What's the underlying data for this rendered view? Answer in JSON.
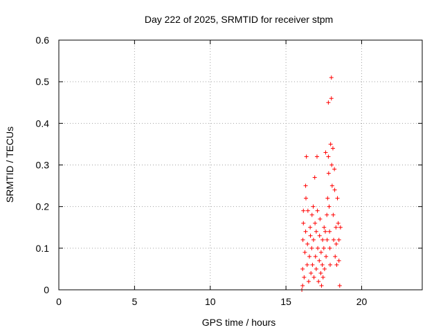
{
  "chart_data": {
    "type": "scatter",
    "title": "Day 222 of 2025, SRMTID for receiver stpm",
    "xlabel": "GPS time / hours",
    "ylabel": "SRMTID / TECUs",
    "xlim": [
      0,
      24
    ],
    "ylim": [
      0,
      0.6
    ],
    "x_ticks": [
      0,
      5,
      10,
      15,
      20
    ],
    "y_ticks": [
      0,
      0.1,
      0.2,
      0.3,
      0.4,
      0.5,
      0.6
    ],
    "x_tick_labels": [
      "0",
      "5",
      "10",
      "15",
      "20"
    ],
    "y_tick_labels": [
      "0",
      "0.1",
      "0.2",
      "0.3",
      "0.4",
      "0.5",
      "0.6"
    ],
    "grid": true,
    "marker": "+",
    "marker_color": "#ff0000",
    "series": [
      {
        "name": "SRMTID",
        "points": [
          [
            16.05,
            0.0
          ],
          [
            16.1,
            0.01
          ],
          [
            16.1,
            0.05
          ],
          [
            16.12,
            0.12
          ],
          [
            16.15,
            0.16
          ],
          [
            16.15,
            0.19
          ],
          [
            16.2,
            0.03
          ],
          [
            16.25,
            0.09
          ],
          [
            16.3,
            0.14
          ],
          [
            16.3,
            0.25
          ],
          [
            16.32,
            0.22
          ],
          [
            16.35,
            0.32
          ],
          [
            16.4,
            0.06
          ],
          [
            16.42,
            0.11
          ],
          [
            16.45,
            0.19
          ],
          [
            16.5,
            0.02
          ],
          [
            16.55,
            0.08
          ],
          [
            16.6,
            0.15
          ],
          [
            16.62,
            0.13
          ],
          [
            16.65,
            0.04
          ],
          [
            16.7,
            0.1
          ],
          [
            16.72,
            0.18
          ],
          [
            16.75,
            0.06
          ],
          [
            16.8,
            0.2
          ],
          [
            16.82,
            0.12
          ],
          [
            16.85,
            0.03
          ],
          [
            16.9,
            0.27
          ],
          [
            16.92,
            0.16
          ],
          [
            16.95,
            0.08
          ],
          [
            17.0,
            0.05
          ],
          [
            17.0,
            0.14
          ],
          [
            17.05,
            0.32
          ],
          [
            17.08,
            0.19
          ],
          [
            17.1,
            0.1
          ],
          [
            17.15,
            0.02
          ],
          [
            17.2,
            0.07
          ],
          [
            17.22,
            0.13
          ],
          [
            17.25,
            0.17
          ],
          [
            17.3,
            0.04
          ],
          [
            17.32,
            0.09
          ],
          [
            17.35,
            0.01
          ],
          [
            17.4,
            0.06
          ],
          [
            17.42,
            0.12
          ],
          [
            17.45,
            0.03
          ],
          [
            17.5,
            0.1
          ],
          [
            17.52,
            0.15
          ],
          [
            17.55,
            0.05
          ],
          [
            17.6,
            0.14
          ],
          [
            17.62,
            0.33
          ],
          [
            17.65,
            0.08
          ],
          [
            17.7,
            0.18
          ],
          [
            17.72,
            0.12
          ],
          [
            17.75,
            0.22
          ],
          [
            17.8,
            0.45
          ],
          [
            17.8,
            0.32
          ],
          [
            17.82,
            0.28
          ],
          [
            17.85,
            0.2
          ],
          [
            17.88,
            0.14
          ],
          [
            17.9,
            0.1
          ],
          [
            17.92,
            0.06
          ],
          [
            17.95,
            0.35
          ],
          [
            18.0,
            0.51
          ],
          [
            18.0,
            0.46
          ],
          [
            18.02,
            0.3
          ],
          [
            18.05,
            0.25
          ],
          [
            18.1,
            0.34
          ],
          [
            18.12,
            0.18
          ],
          [
            18.15,
            0.12
          ],
          [
            18.2,
            0.29
          ],
          [
            18.22,
            0.24
          ],
          [
            18.25,
            0.08
          ],
          [
            18.3,
            0.15
          ],
          [
            18.32,
            0.11
          ],
          [
            18.35,
            0.06
          ],
          [
            18.4,
            0.22
          ],
          [
            18.45,
            0.16
          ],
          [
            18.5,
            0.12
          ],
          [
            18.5,
            0.07
          ],
          [
            18.55,
            0.01
          ],
          [
            18.6,
            0.15
          ]
        ]
      }
    ]
  }
}
